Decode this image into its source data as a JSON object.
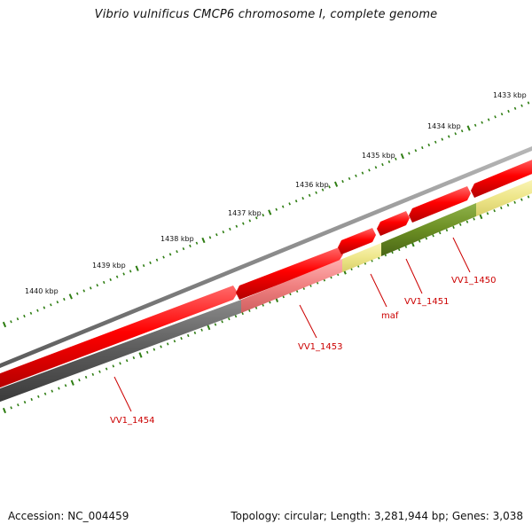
{
  "title": "Vibrio vulnificus CMCP6 chromosome I, complete genome",
  "footer": {
    "accession": "Accession: NC_004459",
    "summary": "Topology: circular; Length: 3,281,944 bp; Genes: 3,038"
  },
  "scale": {
    "labels": [
      "1440 kbp",
      "1439 kbp",
      "1438 kbp",
      "1437 kbp",
      "1436 kbp",
      "1435 kbp",
      "1434 kbp",
      "1433 kbp"
    ],
    "tick_color": "#2e7d12"
  },
  "colors": {
    "backbone": "#808080",
    "forward_cds": "#ff0000",
    "reverse_cds_dark": "#555555",
    "reverse_cds_light": "#f08080",
    "reverse_cds_yellow": "#eee68a",
    "reverse_cds_olive": "#6b8e23",
    "gene_label": "#cc0000"
  },
  "forward_genes": [
    {
      "name": "forward-cds-1"
    },
    {
      "name": "forward-cds-2"
    },
    {
      "name": "forward-cds-3"
    },
    {
      "name": "forward-cds-4"
    },
    {
      "name": "forward-cds-5"
    },
    {
      "name": "forward-cds-6"
    }
  ],
  "reverse_genes": [
    {
      "label": "VV1_1454",
      "color": "#555555"
    },
    {
      "label": "VV1_1453",
      "color": "#f08080"
    },
    {
      "label": "maf",
      "color": "#eee68a"
    },
    {
      "label": "VV1_1451",
      "color": "#6b8e23"
    },
    {
      "label": "VV1_1450",
      "color": "#eee68a"
    }
  ]
}
